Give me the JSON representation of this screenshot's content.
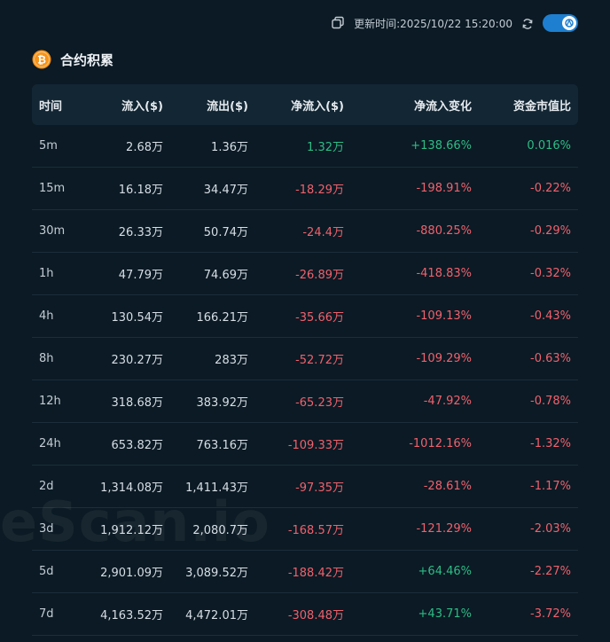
{
  "topbar": {
    "update_text": "更新时间:2025/10/22 15:20:00",
    "icons": [
      "copy-icon",
      "refresh-icon",
      "toggle-switch"
    ]
  },
  "section": {
    "title": "合约积累",
    "icon": "bitcoin-icon"
  },
  "table": {
    "headers": [
      "时间",
      "流入($)",
      "流出($)",
      "净流入($)",
      "净流入变化",
      "资金市值比"
    ],
    "rows": [
      {
        "time": "5m",
        "inflow": "2.68万",
        "outflow": "1.36万",
        "net": "1.32万",
        "change": "+138.66%",
        "ratio": "0.016%"
      },
      {
        "time": "15m",
        "inflow": "16.18万",
        "outflow": "34.47万",
        "net": "-18.29万",
        "change": "-198.91%",
        "ratio": "-0.22%"
      },
      {
        "time": "30m",
        "inflow": "26.33万",
        "outflow": "50.74万",
        "net": "-24.4万",
        "change": "-880.25%",
        "ratio": "-0.29%"
      },
      {
        "time": "1h",
        "inflow": "47.79万",
        "outflow": "74.69万",
        "net": "-26.89万",
        "change": "-418.83%",
        "ratio": "-0.32%"
      },
      {
        "time": "4h",
        "inflow": "130.54万",
        "outflow": "166.21万",
        "net": "-35.66万",
        "change": "-109.13%",
        "ratio": "-0.43%"
      },
      {
        "time": "8h",
        "inflow": "230.27万",
        "outflow": "283万",
        "net": "-52.72万",
        "change": "-109.29%",
        "ratio": "-0.63%"
      },
      {
        "time": "12h",
        "inflow": "318.68万",
        "outflow": "383.92万",
        "net": "-65.23万",
        "change": "-47.92%",
        "ratio": "-0.78%"
      },
      {
        "time": "24h",
        "inflow": "653.82万",
        "outflow": "763.16万",
        "net": "-109.33万",
        "change": "-1012.16%",
        "ratio": "-1.32%"
      },
      {
        "time": "2d",
        "inflow": "1,314.08万",
        "outflow": "1,411.43万",
        "net": "-97.35万",
        "change": "-28.61%",
        "ratio": "-1.17%"
      },
      {
        "time": "3d",
        "inflow": "1,912.12万",
        "outflow": "2,080.7万",
        "net": "-168.57万",
        "change": "-121.29%",
        "ratio": "-2.03%"
      },
      {
        "time": "5d",
        "inflow": "2,901.09万",
        "outflow": "3,089.52万",
        "net": "-188.42万",
        "change": "+64.46%",
        "ratio": "-2.27%"
      },
      {
        "time": "7d",
        "inflow": "4,163.52万",
        "outflow": "4,472.01万",
        "net": "-308.48万",
        "change": "+43.71%",
        "ratio": "-3.72%"
      }
    ]
  },
  "colors": {
    "positive": "#2ebd85",
    "negative": "#f0616d",
    "background": "#0b1a24",
    "header_bg": "#132633",
    "accent": "#1e7fd0"
  },
  "watermark": "eScan.io"
}
